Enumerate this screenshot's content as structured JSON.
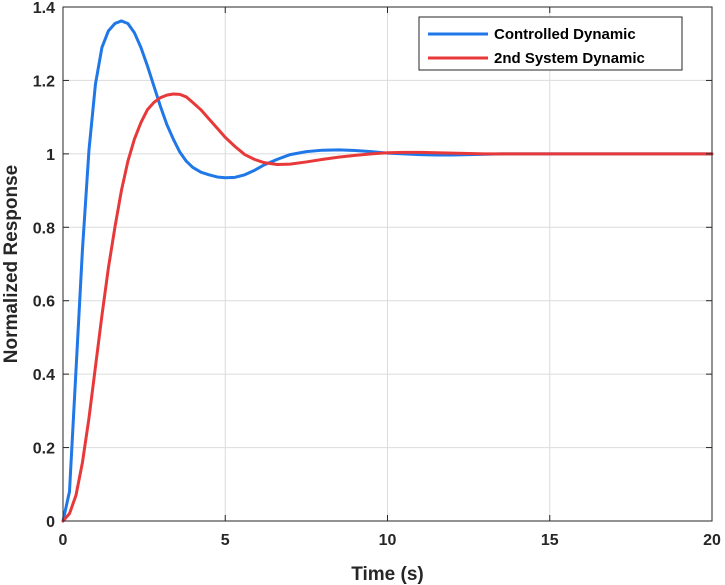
{
  "chart_data": {
    "type": "line",
    "title": "",
    "xlabel": "Time (s)",
    "ylabel": "Normalized Response",
    "xlim": [
      0,
      20
    ],
    "ylim": [
      0,
      1.4
    ],
    "xticks": [
      0,
      5,
      10,
      15,
      20
    ],
    "yticks": [
      0,
      0.2,
      0.4,
      0.6,
      0.8,
      1,
      1.2,
      1.4
    ],
    "xtick_labels": [
      "0",
      "5",
      "10",
      "15",
      "20"
    ],
    "ytick_labels": [
      "0",
      "0.2",
      "0.4",
      "0.6",
      "0.8",
      "1",
      "1.2",
      "1.4"
    ],
    "grid": true,
    "legend_position": "top-right",
    "series": [
      {
        "name": "Controlled Dynamic",
        "color": "#1f77e8",
        "x": [
          0,
          0.2,
          0.4,
          0.6,
          0.8,
          1.0,
          1.2,
          1.4,
          1.6,
          1.8,
          2.0,
          2.2,
          2.4,
          2.6,
          2.8,
          3.0,
          3.2,
          3.4,
          3.6,
          3.8,
          4.0,
          4.25,
          4.5,
          4.75,
          5.0,
          5.3,
          5.6,
          5.9,
          6.2,
          6.6,
          7.0,
          7.5,
          8.0,
          8.5,
          9.0,
          9.5,
          10.0,
          10.5,
          11.0,
          11.5,
          12.0,
          12.5,
          13.0,
          13.5,
          14.0,
          15.0,
          16.0,
          17.0,
          18.0,
          19.0,
          20.0
        ],
        "y": [
          0,
          0.08,
          0.41,
          0.74,
          1.01,
          1.19,
          1.29,
          1.335,
          1.355,
          1.362,
          1.355,
          1.33,
          1.29,
          1.24,
          1.185,
          1.13,
          1.08,
          1.04,
          1.005,
          0.98,
          0.963,
          0.95,
          0.943,
          0.937,
          0.935,
          0.936,
          0.943,
          0.955,
          0.97,
          0.985,
          0.998,
          1.006,
          1.01,
          1.011,
          1.009,
          1.006,
          1.002,
          1.0,
          0.998,
          0.997,
          0.997,
          0.998,
          0.999,
          1.0,
          1.0,
          1.0,
          1.0,
          1.0,
          1.0,
          1.0,
          1.0
        ]
      },
      {
        "name": "2nd System Dynamic",
        "color": "#e8393a",
        "x": [
          0,
          0.2,
          0.4,
          0.6,
          0.8,
          1.0,
          1.2,
          1.4,
          1.6,
          1.8,
          2.0,
          2.2,
          2.4,
          2.6,
          2.8,
          3.0,
          3.2,
          3.4,
          3.6,
          3.8,
          4.0,
          4.25,
          4.5,
          4.75,
          5.0,
          5.3,
          5.6,
          5.9,
          6.2,
          6.6,
          7.0,
          7.5,
          8.0,
          8.5,
          9.0,
          9.5,
          10.0,
          10.5,
          11.0,
          11.5,
          12.0,
          12.5,
          13.0,
          13.5,
          14.0,
          15.0,
          16.0,
          17.0,
          18.0,
          19.0,
          20.0
        ],
        "y": [
          0,
          0.02,
          0.07,
          0.16,
          0.28,
          0.42,
          0.56,
          0.69,
          0.8,
          0.9,
          0.98,
          1.04,
          1.085,
          1.12,
          1.14,
          1.153,
          1.16,
          1.163,
          1.162,
          1.155,
          1.14,
          1.12,
          1.095,
          1.07,
          1.045,
          1.02,
          0.998,
          0.985,
          0.976,
          0.971,
          0.972,
          0.978,
          0.985,
          0.991,
          0.996,
          1.0,
          1.003,
          1.004,
          1.004,
          1.003,
          1.002,
          1.001,
          1.0,
          1.0,
          1.0,
          1.0,
          1.0,
          1.0,
          1.0,
          1.0,
          1.0
        ]
      }
    ]
  }
}
